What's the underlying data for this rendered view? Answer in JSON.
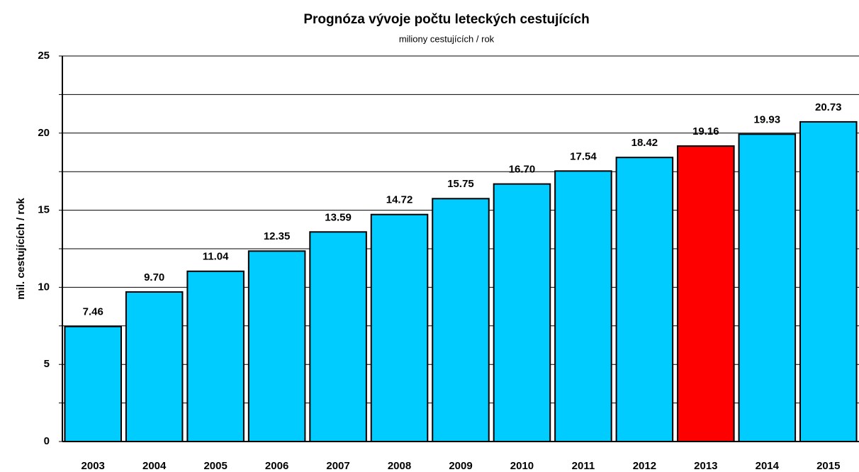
{
  "chart_data": {
    "type": "bar",
    "title": "Prognóza vývoje počtu leteckých cestujících",
    "subtitle": "miliony cestujících / rok",
    "y_label": "mil. cestujících / rok",
    "categories": [
      "2003",
      "2004",
      "2005",
      "2006",
      "2007",
      "2008",
      "2009",
      "2010",
      "2011",
      "2012",
      "2013",
      "2014",
      "2015"
    ],
    "values": [
      7.46,
      9.7,
      11.04,
      12.35,
      13.59,
      14.72,
      15.75,
      16.7,
      17.54,
      18.42,
      19.16,
      19.93,
      20.73
    ],
    "value_labels": [
      "7.46",
      "9.70",
      "11.04",
      "12.35",
      "13.59",
      "14.72",
      "15.75",
      "16.70",
      "17.54",
      "18.42",
      "19.16",
      "19.93",
      "20.73"
    ],
    "colors": [
      "#00ccff",
      "#00ccff",
      "#00ccff",
      "#00ccff",
      "#00ccff",
      "#00ccff",
      "#00ccff",
      "#00ccff",
      "#00ccff",
      "#00ccff",
      "#ff0000",
      "#00ccff",
      "#00ccff"
    ],
    "ylim": [
      0,
      25
    ],
    "yticks": [
      0,
      5,
      10,
      15,
      20,
      25
    ],
    "y_minor_ticks": [
      2.5,
      7.5,
      12.5,
      17.5,
      22.5
    ],
    "grid": true
  }
}
